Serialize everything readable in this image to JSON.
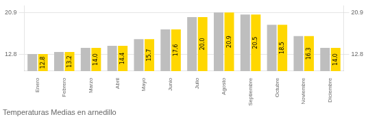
{
  "chart_data": {
    "type": "bar",
    "title": "Temperaturas Medias en arnedillo",
    "categories": [
      "Enero",
      "Febrero",
      "Marzo",
      "Abril",
      "Mayo",
      "Junio",
      "Julio",
      "Agosto",
      "Septiembre",
      "Octubre",
      "Noviembre",
      "Diciembre"
    ],
    "series": [
      {
        "color": "#BEBEBE",
        "values": [
          12.8,
          13.2,
          14.0,
          14.4,
          15.7,
          17.6,
          20.0,
          20.9,
          20.5,
          18.5,
          16.3,
          14.0
        ]
      },
      {
        "color": "#FFD700",
        "values": [
          12.8,
          13.2,
          14.0,
          14.4,
          15.7,
          17.6,
          20.0,
          20.9,
          20.5,
          18.5,
          16.3,
          14.0
        ],
        "value_labels": [
          "12.8",
          "13.2",
          "14.0",
          "14.4",
          "15.7",
          "17.6",
          "20.0",
          "20.9",
          "20.5",
          "18.5",
          "16.3",
          "14.0"
        ],
        "data_labels": true
      }
    ],
    "ylim": [
      9.5,
      22.2
    ],
    "yticks": [
      12.8,
      20.9
    ],
    "y2lim": [
      9.5,
      22.2
    ],
    "y2ticks": [
      12.8,
      20.9
    ],
    "grid": true
  }
}
